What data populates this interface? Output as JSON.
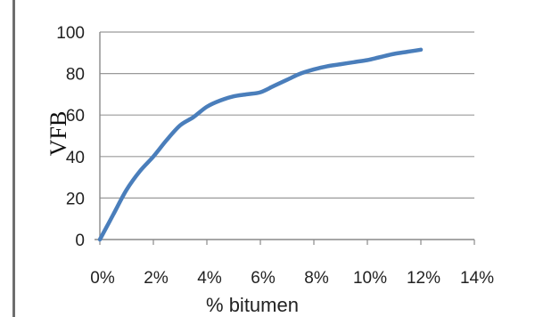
{
  "chart_data": {
    "type": "line",
    "xlabel": "% bitumen",
    "ylabel": "VFB",
    "xlim": [
      0,
      14
    ],
    "ylim": [
      0,
      100
    ],
    "x_ticks": [
      "0%",
      "2%",
      "4%",
      "6%",
      "8%",
      "10%",
      "12%",
      "14%"
    ],
    "y_ticks": [
      "0",
      "20",
      "40",
      "60",
      "80",
      "100"
    ],
    "grid": "horizontal",
    "legend": "none",
    "series": [
      {
        "color": "#4a7ebb",
        "x": [
          0,
          0.5,
          1,
          1.5,
          2,
          2.5,
          3,
          3.5,
          4,
          4.5,
          5,
          5.5,
          6,
          6.5,
          7,
          7.5,
          8,
          8.5,
          9,
          9.5,
          10,
          10.5,
          11,
          11.5,
          12
        ],
        "y": [
          0,
          12,
          24,
          33,
          40,
          48,
          55,
          59,
          64,
          67,
          69,
          70,
          71,
          74,
          77,
          80,
          82,
          83.5,
          84.5,
          85.5,
          86.5,
          88,
          89.5,
          90.5,
          91.5
        ]
      }
    ]
  }
}
